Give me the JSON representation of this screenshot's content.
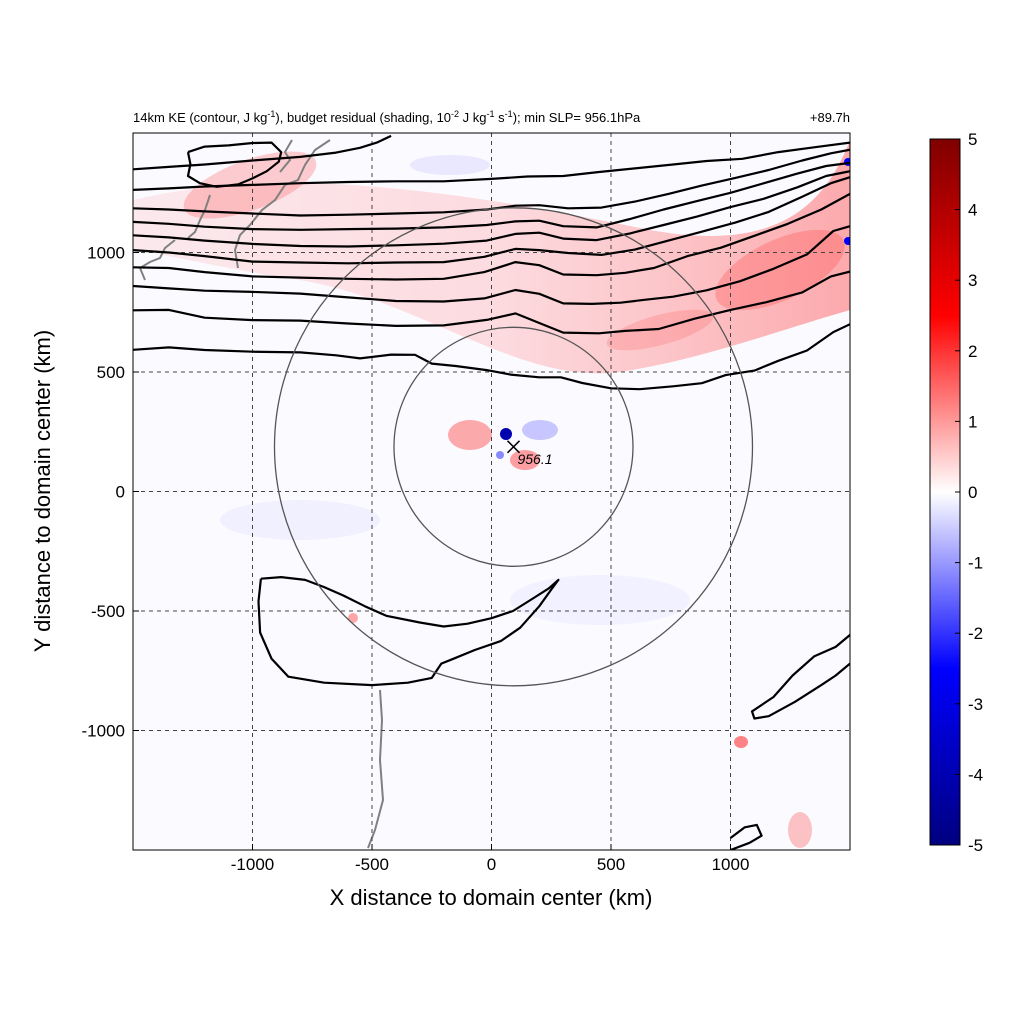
{
  "chart_data": {
    "type": "heatmap",
    "title_left": {
      "prefix": "14km KE (contour, J kg",
      "sup1": "-1",
      "mid1": "), budget residual (shading, 10",
      "sup2": "-2",
      "mid2": " J kg",
      "sup3": "-1",
      "mid3": " s",
      "sup4": "-1",
      "suffix": "); min SLP= 956.1hPa"
    },
    "title_right": "+89.7h",
    "xlabel": "X distance to domain center (km)",
    "ylabel": "Y distance to domain center (km)",
    "xlim": [
      -1500,
      1500
    ],
    "ylim": [
      -1500,
      1500
    ],
    "xticks": [
      -1000,
      -500,
      0,
      500,
      1000
    ],
    "yticks": [
      -1000,
      -500,
      0,
      500,
      1000
    ],
    "grid": "dashed",
    "storm_center": {
      "x": 92,
      "y": 187,
      "label": "956.1"
    },
    "rings": [
      {
        "x": 92,
        "y": 187,
        "radius_km": 500
      },
      {
        "x": 92,
        "y": 187,
        "radius_km": 1000
      }
    ],
    "colorbar": {
      "ticks": [
        5,
        4,
        3,
        2,
        1,
        0,
        -1,
        -2,
        -3,
        -4,
        -5
      ],
      "range": [
        -5,
        5
      ],
      "colors": [
        "#00007f",
        "#0000ff",
        "#ffffff",
        "#ff0000",
        "#7f0000"
      ]
    },
    "contour_lines": [
      [
        [
          -1500,
          593
        ],
        [
          -1350,
          603
        ],
        [
          -1200,
          592
        ],
        [
          -1000,
          585
        ],
        [
          -800,
          582
        ],
        [
          -650,
          570
        ],
        [
          -550,
          557
        ],
        [
          -420,
          573
        ],
        [
          -320,
          572
        ],
        [
          -250,
          535
        ],
        [
          -150,
          525
        ],
        [
          -20,
          508
        ],
        [
          80,
          489
        ],
        [
          200,
          478
        ],
        [
          290,
          478
        ],
        [
          380,
          454
        ],
        [
          500,
          432
        ],
        [
          620,
          428
        ],
        [
          760,
          440
        ],
        [
          880,
          453
        ],
        [
          980,
          487
        ],
        [
          1100,
          506
        ],
        [
          1200,
          547
        ],
        [
          1320,
          590
        ],
        [
          1430,
          667
        ],
        [
          1500,
          700
        ]
      ],
      [
        [
          -1500,
          758
        ],
        [
          -1350,
          760
        ],
        [
          -1200,
          727
        ],
        [
          -1000,
          717
        ],
        [
          -800,
          715
        ],
        [
          -600,
          703
        ],
        [
          -400,
          693
        ],
        [
          -200,
          695
        ],
        [
          -20,
          718
        ],
        [
          100,
          745
        ],
        [
          200,
          705
        ],
        [
          300,
          665
        ],
        [
          450,
          662
        ],
        [
          560,
          672
        ],
        [
          700,
          680
        ],
        [
          850,
          723
        ],
        [
          1000,
          760
        ],
        [
          1150,
          792
        ],
        [
          1300,
          833
        ],
        [
          1420,
          900
        ],
        [
          1500,
          920
        ]
      ],
      [
        [
          -1500,
          860
        ],
        [
          -1350,
          850
        ],
        [
          -1200,
          840
        ],
        [
          -1000,
          835
        ],
        [
          -800,
          828
        ],
        [
          -600,
          812
        ],
        [
          -400,
          797
        ],
        [
          -200,
          795
        ],
        [
          -30,
          808
        ],
        [
          100,
          843
        ],
        [
          200,
          827
        ],
        [
          300,
          787
        ],
        [
          420,
          785
        ],
        [
          540,
          790
        ],
        [
          640,
          802
        ],
        [
          760,
          815
        ],
        [
          900,
          842
        ],
        [
          1040,
          880
        ],
        [
          1180,
          932
        ],
        [
          1320,
          992
        ],
        [
          1430,
          1090
        ],
        [
          1500,
          1110
        ]
      ],
      [
        [
          -1500,
          938
        ],
        [
          -1350,
          935
        ],
        [
          -1200,
          918
        ],
        [
          -1000,
          900
        ],
        [
          -800,
          895
        ],
        [
          -600,
          890
        ],
        [
          -400,
          887
        ],
        [
          -200,
          890
        ],
        [
          -30,
          918
        ],
        [
          100,
          960
        ],
        [
          200,
          947
        ],
        [
          300,
          908
        ],
        [
          440,
          905
        ],
        [
          560,
          915
        ],
        [
          680,
          935
        ],
        [
          820,
          985
        ],
        [
          960,
          1020
        ],
        [
          1100,
          1070
        ],
        [
          1240,
          1120
        ],
        [
          1380,
          1180
        ],
        [
          1500,
          1245
        ]
      ],
      [
        [
          -1500,
          1010
        ],
        [
          -1350,
          1000
        ],
        [
          -1200,
          985
        ],
        [
          -1000,
          962
        ],
        [
          -800,
          958
        ],
        [
          -600,
          955
        ],
        [
          -400,
          958
        ],
        [
          -200,
          960
        ],
        [
          -30,
          982
        ],
        [
          100,
          1015
        ],
        [
          200,
          1010
        ],
        [
          320,
          998
        ],
        [
          460,
          990
        ],
        [
          600,
          1012
        ],
        [
          740,
          1050
        ],
        [
          880,
          1087
        ],
        [
          1020,
          1125
        ],
        [
          1160,
          1170
        ],
        [
          1300,
          1233
        ],
        [
          1420,
          1290
        ],
        [
          1500,
          1315
        ]
      ],
      [
        [
          -1500,
          1072
        ],
        [
          -1350,
          1063
        ],
        [
          -1200,
          1050
        ],
        [
          -1000,
          1036
        ],
        [
          -800,
          1027
        ],
        [
          -600,
          1025
        ],
        [
          -400,
          1030
        ],
        [
          -200,
          1037
        ],
        [
          -20,
          1050
        ],
        [
          100,
          1078
        ],
        [
          200,
          1083
        ],
        [
          300,
          1058
        ],
        [
          440,
          1052
        ],
        [
          580,
          1080
        ],
        [
          720,
          1115
        ],
        [
          860,
          1150
        ],
        [
          1000,
          1190
        ],
        [
          1140,
          1225
        ],
        [
          1280,
          1273
        ],
        [
          1400,
          1320
        ],
        [
          1500,
          1340
        ]
      ],
      [
        [
          -1500,
          1128
        ],
        [
          -1350,
          1120
        ],
        [
          -1200,
          1108
        ],
        [
          -1000,
          1098
        ],
        [
          -800,
          1095
        ],
        [
          -600,
          1098
        ],
        [
          -400,
          1100
        ],
        [
          -200,
          1105
        ],
        [
          -20,
          1115
        ],
        [
          100,
          1130
        ],
        [
          200,
          1133
        ],
        [
          300,
          1110
        ],
        [
          440,
          1105
        ],
        [
          580,
          1140
        ],
        [
          720,
          1180
        ],
        [
          860,
          1215
        ],
        [
          1000,
          1250
        ],
        [
          1140,
          1290
        ],
        [
          1280,
          1330
        ],
        [
          1400,
          1362
        ],
        [
          1500,
          1375
        ]
      ],
      [
        [
          -1500,
          1185
        ],
        [
          -1350,
          1180
        ],
        [
          -1200,
          1172
        ],
        [
          -1000,
          1163
        ],
        [
          -800,
          1155
        ],
        [
          -600,
          1158
        ],
        [
          -400,
          1163
        ],
        [
          -200,
          1168
        ],
        [
          -20,
          1180
        ],
        [
          100,
          1196
        ],
        [
          200,
          1198
        ],
        [
          320,
          1185
        ],
        [
          460,
          1188
        ],
        [
          600,
          1213
        ],
        [
          740,
          1245
        ],
        [
          880,
          1280
        ],
        [
          1020,
          1312
        ],
        [
          1160,
          1345
        ],
        [
          1300,
          1385
        ],
        [
          1420,
          1415
        ],
        [
          1500,
          1430
        ]
      ],
      [
        [
          -1500,
          1262
        ],
        [
          -1350,
          1268
        ],
        [
          -1200,
          1276
        ],
        [
          -1000,
          1283
        ],
        [
          -800,
          1290
        ],
        [
          -600,
          1295
        ],
        [
          -400,
          1298
        ],
        [
          -200,
          1298
        ],
        [
          0,
          1308
        ],
        [
          150,
          1318
        ],
        [
          300,
          1320
        ],
        [
          450,
          1337
        ],
        [
          600,
          1352
        ],
        [
          760,
          1368
        ],
        [
          900,
          1383
        ],
        [
          1050,
          1392
        ],
        [
          1200,
          1420
        ],
        [
          1350,
          1440
        ],
        [
          1500,
          1460
        ]
      ],
      [
        [
          -1500,
          1348
        ],
        [
          -1350,
          1358
        ],
        [
          -1200,
          1368
        ],
        [
          -1000,
          1385
        ],
        [
          -800,
          1400
        ],
        [
          -650,
          1418
        ],
        [
          -550,
          1438
        ],
        [
          -480,
          1460
        ],
        [
          -420,
          1488
        ]
      ],
      [
        [
          -1270,
          1420
        ],
        [
          -1200,
          1443
        ],
        [
          -1100,
          1448
        ],
        [
          -1000,
          1458
        ],
        [
          -920,
          1460
        ],
        [
          -880,
          1420
        ],
        [
          -890,
          1380
        ],
        [
          -940,
          1340
        ],
        [
          -1000,
          1310
        ],
        [
          -1060,
          1285
        ],
        [
          -1150,
          1275
        ],
        [
          -1220,
          1290
        ],
        [
          -1270,
          1320
        ],
        [
          -1260,
          1370
        ],
        [
          -1270,
          1420
        ]
      ],
      [
        [
          -965,
          -365
        ],
        [
          -880,
          -358
        ],
        [
          -780,
          -370
        ],
        [
          -700,
          -400
        ],
        [
          -620,
          -435
        ],
        [
          -530,
          -480
        ],
        [
          -440,
          -520
        ],
        [
          -300,
          -548
        ],
        [
          -200,
          -565
        ],
        [
          -100,
          -553
        ],
        [
          0,
          -530
        ],
        [
          90,
          -500
        ],
        [
          170,
          -450
        ],
        [
          240,
          -405
        ],
        [
          280,
          -370
        ],
        [
          250,
          -410
        ],
        [
          200,
          -480
        ],
        [
          120,
          -570
        ],
        [
          40,
          -625
        ],
        [
          -70,
          -663
        ],
        [
          -160,
          -700
        ],
        [
          -210,
          -720
        ],
        [
          -250,
          -780
        ],
        [
          -350,
          -800
        ],
        [
          -500,
          -810
        ],
        [
          -700,
          -800
        ],
        [
          -850,
          -775
        ],
        [
          -920,
          -700
        ],
        [
          -968,
          -590
        ],
        [
          -975,
          -460
        ],
        [
          -965,
          -365
        ]
      ],
      [
        [
          1500,
          -600
        ],
        [
          1440,
          -650
        ],
        [
          1350,
          -690
        ],
        [
          1260,
          -770
        ],
        [
          1180,
          -860
        ],
        [
          1090,
          -920
        ],
        [
          1100,
          -950
        ],
        [
          1160,
          -940
        ],
        [
          1270,
          -880
        ],
        [
          1380,
          -810
        ],
        [
          1440,
          -770
        ],
        [
          1500,
          -720
        ]
      ],
      [
        [
          1000,
          -1500
        ],
        [
          1080,
          -1470
        ],
        [
          1130,
          -1440
        ],
        [
          1110,
          -1395
        ],
        [
          1060,
          -1405
        ],
        [
          1000,
          -1450
        ]
      ]
    ]
  }
}
